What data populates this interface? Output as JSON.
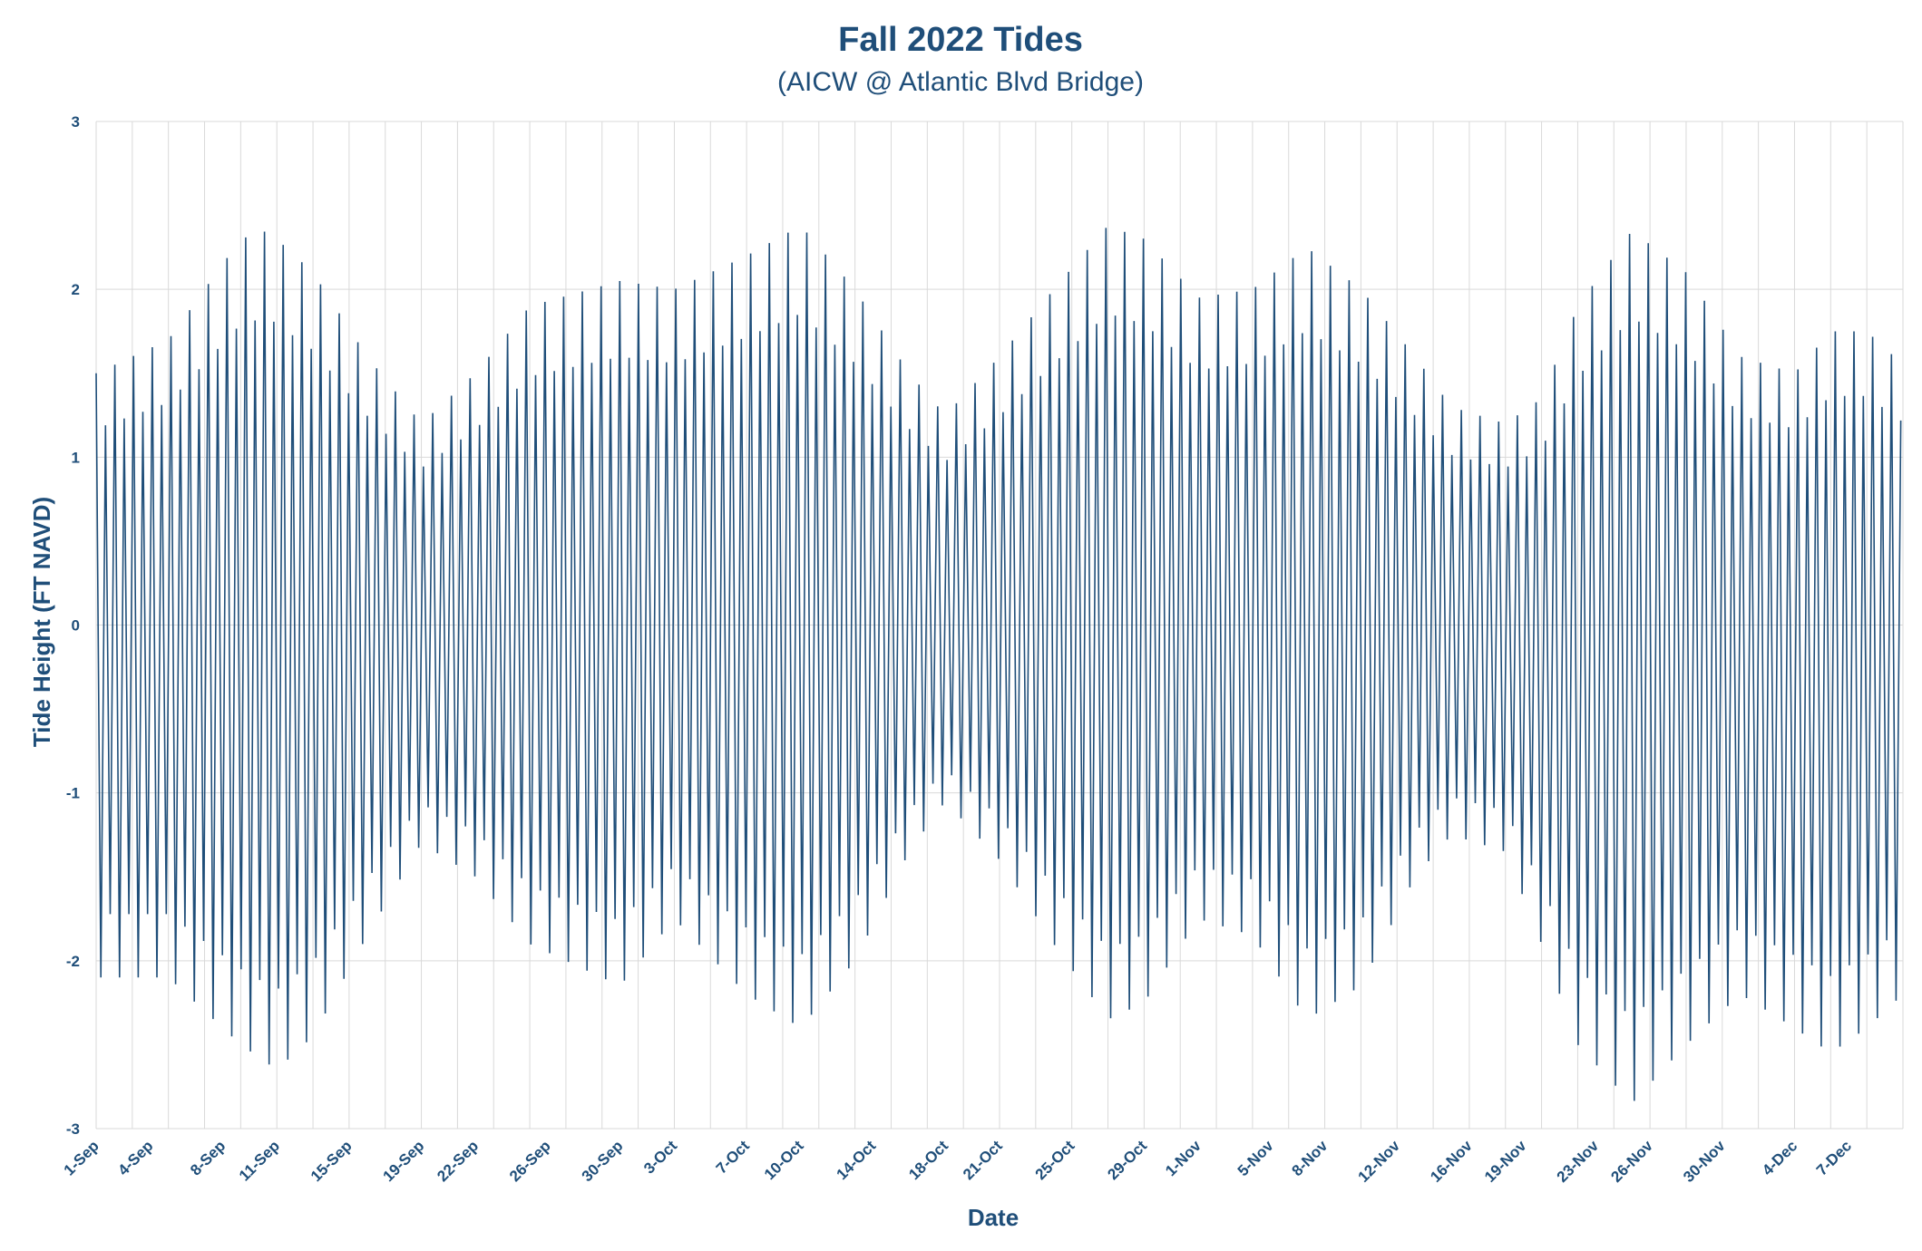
{
  "chart_data": {
    "type": "line",
    "title": "Fall 2022 Tides",
    "subtitle": "(AICW @ Atlantic Blvd Bridge)",
    "xlabel": "Date",
    "ylabel": "Tide Height (FT NAVD)",
    "ylim": [
      -3,
      3
    ],
    "yticks": [
      3,
      2,
      1,
      0,
      -1,
      -2,
      -3
    ],
    "xlim_days": [
      0,
      100
    ],
    "x_ticks": [
      {
        "day": 0,
        "label": "1-Sep"
      },
      {
        "day": 3,
        "label": "4-Sep"
      },
      {
        "day": 7,
        "label": "8-Sep"
      },
      {
        "day": 10,
        "label": "11-Sep"
      },
      {
        "day": 14,
        "label": "15-Sep"
      },
      {
        "day": 18,
        "label": "19-Sep"
      },
      {
        "day": 21,
        "label": "22-Sep"
      },
      {
        "day": 25,
        "label": "26-Sep"
      },
      {
        "day": 29,
        "label": "30-Sep"
      },
      {
        "day": 32,
        "label": "3-Oct"
      },
      {
        "day": 36,
        "label": "7-Oct"
      },
      {
        "day": 39,
        "label": "10-Oct"
      },
      {
        "day": 43,
        "label": "14-Oct"
      },
      {
        "day": 47,
        "label": "18-Oct"
      },
      {
        "day": 50,
        "label": "21-Oct"
      },
      {
        "day": 54,
        "label": "25-Oct"
      },
      {
        "day": 58,
        "label": "29-Oct"
      },
      {
        "day": 61,
        "label": "1-Nov"
      },
      {
        "day": 65,
        "label": "5-Nov"
      },
      {
        "day": 68,
        "label": "8-Nov"
      },
      {
        "day": 72,
        "label": "12-Nov"
      },
      {
        "day": 76,
        "label": "16-Nov"
      },
      {
        "day": 79,
        "label": "19-Nov"
      },
      {
        "day": 83,
        "label": "23-Nov"
      },
      {
        "day": 86,
        "label": "26-Nov"
      },
      {
        "day": 90,
        "label": "30-Nov"
      },
      {
        "day": 94,
        "label": "4-Dec"
      },
      {
        "day": 97,
        "label": "7-Dec"
      }
    ],
    "grid": "vertical and horizontal",
    "legend": "none",
    "series": [
      {
        "color": "#1f4e79",
        "semidiurnal_period_days": 0.5175,
        "envelope_note": "high/low amplitude envelope keyed by day",
        "high_envelope": [
          [
            0,
            1.5
          ],
          [
            4,
            1.7
          ],
          [
            8,
            2.3
          ],
          [
            9.5,
            2.35
          ],
          [
            12,
            2.1
          ],
          [
            15,
            1.6
          ],
          [
            18,
            1.2
          ],
          [
            21,
            1.5
          ],
          [
            24,
            1.9
          ],
          [
            29,
            2.05
          ],
          [
            32,
            2.0
          ],
          [
            36,
            2.2
          ],
          [
            39,
            2.38
          ],
          [
            42,
            2.0
          ],
          [
            45,
            1.5
          ],
          [
            47,
            1.25
          ],
          [
            50,
            1.6
          ],
          [
            53,
            2.0
          ],
          [
            56,
            2.38
          ],
          [
            58,
            2.3
          ],
          [
            61,
            1.95
          ],
          [
            64,
            2.0
          ],
          [
            67,
            2.25
          ],
          [
            70,
            2.0
          ],
          [
            73,
            1.6
          ],
          [
            75,
            1.3
          ],
          [
            78,
            1.2
          ],
          [
            80,
            1.35
          ],
          [
            82,
            1.9
          ],
          [
            85,
            2.35
          ],
          [
            88,
            2.1
          ],
          [
            91,
            1.6
          ],
          [
            94,
            1.5
          ],
          [
            96,
            1.75
          ],
          [
            98,
            1.75
          ],
          [
            100,
            1.55
          ]
        ],
        "low_envelope": [
          [
            0,
            -2.1
          ],
          [
            4,
            -2.1
          ],
          [
            8,
            -2.5
          ],
          [
            10,
            -2.65
          ],
          [
            12,
            -2.45
          ],
          [
            15,
            -1.85
          ],
          [
            18,
            -1.3
          ],
          [
            21,
            -1.5
          ],
          [
            24,
            -1.9
          ],
          [
            29,
            -2.15
          ],
          [
            32,
            -1.75
          ],
          [
            36,
            -2.2
          ],
          [
            39,
            -2.4
          ],
          [
            42,
            -2.0
          ],
          [
            45,
            -1.35
          ],
          [
            47,
            -1.05
          ],
          [
            50,
            -1.4
          ],
          [
            53,
            -1.9
          ],
          [
            56,
            -2.35
          ],
          [
            58,
            -2.25
          ],
          [
            61,
            -1.75
          ],
          [
            64,
            -1.85
          ],
          [
            67,
            -2.35
          ],
          [
            70,
            -2.15
          ],
          [
            73,
            -1.5
          ],
          [
            75,
            -1.25
          ],
          [
            78,
            -1.35
          ],
          [
            80,
            -1.9
          ],
          [
            82,
            -2.5
          ],
          [
            85,
            -2.85
          ],
          [
            88,
            -2.5
          ],
          [
            91,
            -2.2
          ],
          [
            94,
            -2.4
          ],
          [
            96,
            -2.55
          ],
          [
            98,
            -2.4
          ],
          [
            100,
            -2.2
          ]
        ]
      }
    ]
  }
}
